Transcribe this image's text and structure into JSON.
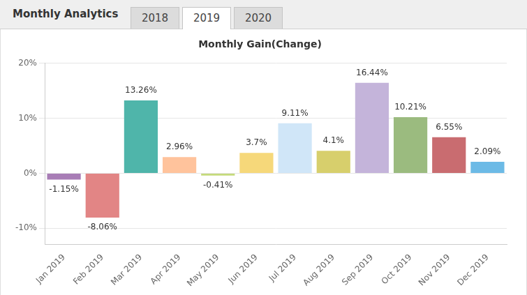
{
  "page": {
    "heading": "Monthly Analytics",
    "tabs": [
      "2018",
      "2019",
      "2020"
    ],
    "selected_tab": "2019"
  },
  "chart_data": {
    "type": "bar",
    "title": "Monthly Gain(Change)",
    "categories": [
      "Jan 2019",
      "Feb 2019",
      "Mar 2019",
      "Apr 2019",
      "May 2019",
      "Jun 2019",
      "Jul 2019",
      "Aug 2019",
      "Sep 2019",
      "Oct 2019",
      "Nov 2019",
      "Dec 2019"
    ],
    "values": [
      -1.15,
      -8.06,
      13.26,
      2.96,
      -0.41,
      3.7,
      9.11,
      4.1,
      16.44,
      10.21,
      6.55,
      2.09
    ],
    "value_labels": [
      "-1.15%",
      "-8.06%",
      "13.26%",
      "2.96%",
      "-0.41%",
      "3.7%",
      "9.11%",
      "4.1%",
      "16.44%",
      "10.21%",
      "6.55%",
      "2.09%"
    ],
    "colors": [
      "#a87db6",
      "#e28585",
      "#4fb5aa",
      "#ffc39c",
      "#c5da7b",
      "#f6d87a",
      "#d0e6f8",
      "#d7cf6c",
      "#c4b4da",
      "#9bbb7f",
      "#c96c70",
      "#6cbae6"
    ],
    "data_labels": true,
    "ylim": [
      -13,
      20
    ],
    "yticks": [
      {
        "value": -10,
        "label": "-10%"
      },
      {
        "value": 0,
        "label": "0%"
      },
      {
        "value": 10,
        "label": "10%"
      },
      {
        "value": 20,
        "label": "20%"
      }
    ],
    "grid": true
  }
}
